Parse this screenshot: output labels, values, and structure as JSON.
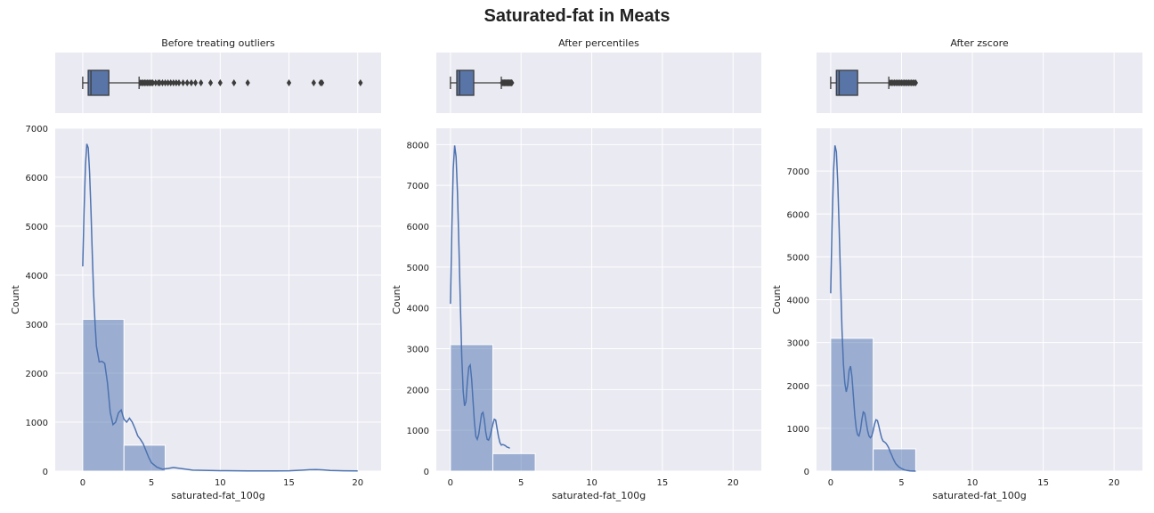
{
  "figure": {
    "title": "Saturated-fat in Meats",
    "colors": {
      "panel_bg": "#eaeaf2",
      "grid": "#ffffff",
      "box_fill": "#5975a8",
      "box_edge": "#3c3c3c",
      "hist_fill": "#4c72b0",
      "kde_line": "#4c72b0"
    }
  },
  "chart_data": [
    {
      "type": "box",
      "title": "Before treating outliers",
      "xlim": [
        -2,
        21.7
      ],
      "grid": true,
      "box": {
        "whisker_low": 0.0,
        "q1": 0.4,
        "median": 0.6,
        "q3": 1.9,
        "whisker_high": 4.1
      },
      "outliers": [
        4.2,
        4.3,
        4.4,
        4.5,
        4.6,
        4.7,
        4.8,
        4.9,
        5.0,
        5.1,
        5.3,
        5.5,
        5.6,
        5.8,
        6.0,
        6.2,
        6.4,
        6.6,
        6.8,
        7.0,
        7.3,
        7.6,
        7.9,
        8.2,
        8.6,
        9.3,
        10.0,
        11.0,
        12.0,
        15.0,
        16.8,
        17.3,
        17.4,
        20.2
      ]
    },
    {
      "type": "box",
      "title": "After percentiles",
      "xlim": [
        -1,
        22
      ],
      "grid": true,
      "box": {
        "whisker_low": 0.0,
        "q1": 0.45,
        "median": 0.65,
        "q3": 1.65,
        "whisker_high": 3.6
      },
      "outliers": [
        3.65,
        3.7,
        3.75,
        3.8,
        3.85,
        3.9,
        3.95,
        4.0,
        4.05,
        4.1,
        4.15,
        4.2,
        4.25,
        4.3,
        4.35
      ]
    },
    {
      "type": "box",
      "title": "After zscore",
      "xlim": [
        -1,
        22
      ],
      "grid": true,
      "box": {
        "whisker_low": 0.0,
        "q1": 0.4,
        "median": 0.6,
        "q3": 1.9,
        "whisker_high": 4.1
      },
      "outliers": [
        4.2,
        4.3,
        4.4,
        4.5,
        4.6,
        4.7,
        4.8,
        4.9,
        5.0,
        5.1,
        5.2,
        5.3,
        5.4,
        5.5,
        5.6,
        5.7,
        5.8,
        5.9,
        6.0
      ]
    },
    {
      "type": "histogram",
      "xlabel": "saturated-fat_100g",
      "ylabel": "Count",
      "xlim": [
        -2,
        21.7
      ],
      "ylim": [
        0,
        7000
      ],
      "xticks": [
        0,
        5,
        10,
        15,
        20
      ],
      "yticks": [
        0,
        1000,
        2000,
        3000,
        4000,
        5000,
        6000,
        7000
      ],
      "grid": true,
      "bins": [
        {
          "x0": 0.0,
          "x1": 3.0,
          "count": 3100
        },
        {
          "x0": 3.0,
          "x1": 6.0,
          "count": 530
        },
        {
          "x0": 6.0,
          "x1": 9.0,
          "count": 15
        },
        {
          "x0": 9.0,
          "x1": 12.0,
          "count": 5
        },
        {
          "x0": 12.0,
          "x1": 15.0,
          "count": 2
        },
        {
          "x0": 15.0,
          "x1": 18.0,
          "count": 4
        },
        {
          "x0": 18.0,
          "x1": 21.0,
          "count": 1
        }
      ],
      "kde": {
        "x": [
          0,
          0.1,
          0.2,
          0.3,
          0.4,
          0.5,
          0.6,
          0.7,
          0.8,
          0.9,
          1.0,
          1.2,
          1.4,
          1.6,
          1.8,
          2.0,
          2.2,
          2.4,
          2.6,
          2.8,
          3.0,
          3.2,
          3.4,
          3.6,
          3.8,
          4.0,
          4.2,
          4.4,
          4.6,
          4.8,
          5.0,
          5.4,
          5.8,
          6.2,
          6.6,
          7.0,
          8,
          10,
          12,
          14,
          15,
          16,
          16.5,
          17,
          17.5,
          18,
          19,
          20
        ],
        "y": [
          4180,
          5300,
          6250,
          6680,
          6600,
          6100,
          5300,
          4400,
          3600,
          3000,
          2550,
          2230,
          2240,
          2200,
          1800,
          1200,
          950,
          1000,
          1190,
          1250,
          1060,
          1000,
          1080,
          1000,
          870,
          720,
          650,
          560,
          420,
          280,
          170,
          80,
          40,
          55,
          75,
          60,
          20,
          10,
          5,
          5,
          8,
          20,
          30,
          32,
          25,
          15,
          8,
          3
        ]
      }
    },
    {
      "type": "histogram",
      "xlabel": "saturated-fat_100g",
      "ylabel": "Count",
      "xlim": [
        -1,
        22
      ],
      "ylim": [
        0,
        8400
      ],
      "xticks": [
        0,
        5,
        10,
        15,
        20
      ],
      "yticks": [
        0,
        1000,
        2000,
        3000,
        4000,
        5000,
        6000,
        7000,
        8000
      ],
      "grid": true,
      "bins": [
        {
          "x0": 0.0,
          "x1": 3.0,
          "count": 3100
        },
        {
          "x0": 3.0,
          "x1": 6.0,
          "count": 430
        }
      ],
      "kde": {
        "x": [
          0,
          0.1,
          0.2,
          0.3,
          0.4,
          0.5,
          0.6,
          0.7,
          0.8,
          0.9,
          1.0,
          1.1,
          1.2,
          1.3,
          1.4,
          1.5,
          1.6,
          1.7,
          1.8,
          1.9,
          2.0,
          2.1,
          2.2,
          2.3,
          2.4,
          2.5,
          2.6,
          2.7,
          2.8,
          2.9,
          3.0,
          3.1,
          3.2,
          3.3,
          3.4,
          3.5,
          3.6,
          3.7,
          3.8,
          3.9,
          4.0,
          4.1,
          4.2
        ],
        "y": [
          4100,
          6000,
          7400,
          7980,
          7700,
          6800,
          5500,
          4100,
          2800,
          1950,
          1600,
          1700,
          2200,
          2550,
          2600,
          2250,
          1700,
          1200,
          850,
          780,
          900,
          1150,
          1400,
          1440,
          1250,
          960,
          780,
          760,
          850,
          1000,
          1150,
          1270,
          1250,
          1050,
          850,
          700,
          640,
          650,
          640,
          620,
          590,
          580,
          560
        ]
      }
    },
    {
      "type": "histogram",
      "xlabel": "saturated-fat_100g",
      "ylabel": "Count",
      "xlim": [
        -1,
        22
      ],
      "ylim": [
        0,
        8000
      ],
      "xticks": [
        0,
        5,
        10,
        15,
        20
      ],
      "yticks": [
        0,
        1000,
        2000,
        3000,
        4000,
        5000,
        6000,
        7000
      ],
      "grid": true,
      "bins": [
        {
          "x0": 0.0,
          "x1": 3.0,
          "count": 3100
        },
        {
          "x0": 3.0,
          "x1": 6.0,
          "count": 520
        }
      ],
      "kde": {
        "x": [
          0,
          0.1,
          0.2,
          0.3,
          0.4,
          0.5,
          0.6,
          0.7,
          0.8,
          0.9,
          1.0,
          1.1,
          1.2,
          1.3,
          1.4,
          1.5,
          1.6,
          1.7,
          1.8,
          1.9,
          2.0,
          2.1,
          2.2,
          2.3,
          2.4,
          2.5,
          2.6,
          2.7,
          2.8,
          2.9,
          3.0,
          3.1,
          3.2,
          3.3,
          3.4,
          3.5,
          3.6,
          3.7,
          3.8,
          3.9,
          4.0,
          4.1,
          4.2,
          4.3,
          4.4,
          4.5,
          4.6,
          4.8,
          5.0,
          5.2,
          5.4,
          5.6,
          5.8,
          6.0
        ],
        "y": [
          4150,
          5800,
          7000,
          7600,
          7450,
          6700,
          5600,
          4400,
          3300,
          2500,
          2050,
          1850,
          2000,
          2350,
          2450,
          2200,
          1750,
          1300,
          1000,
          850,
          820,
          950,
          1200,
          1380,
          1350,
          1150,
          950,
          820,
          780,
          820,
          950,
          1100,
          1200,
          1180,
          1050,
          900,
          770,
          700,
          680,
          650,
          600,
          540,
          450,
          380,
          300,
          230,
          170,
          100,
          60,
          30,
          15,
          5,
          2,
          0
        ]
      }
    }
  ]
}
